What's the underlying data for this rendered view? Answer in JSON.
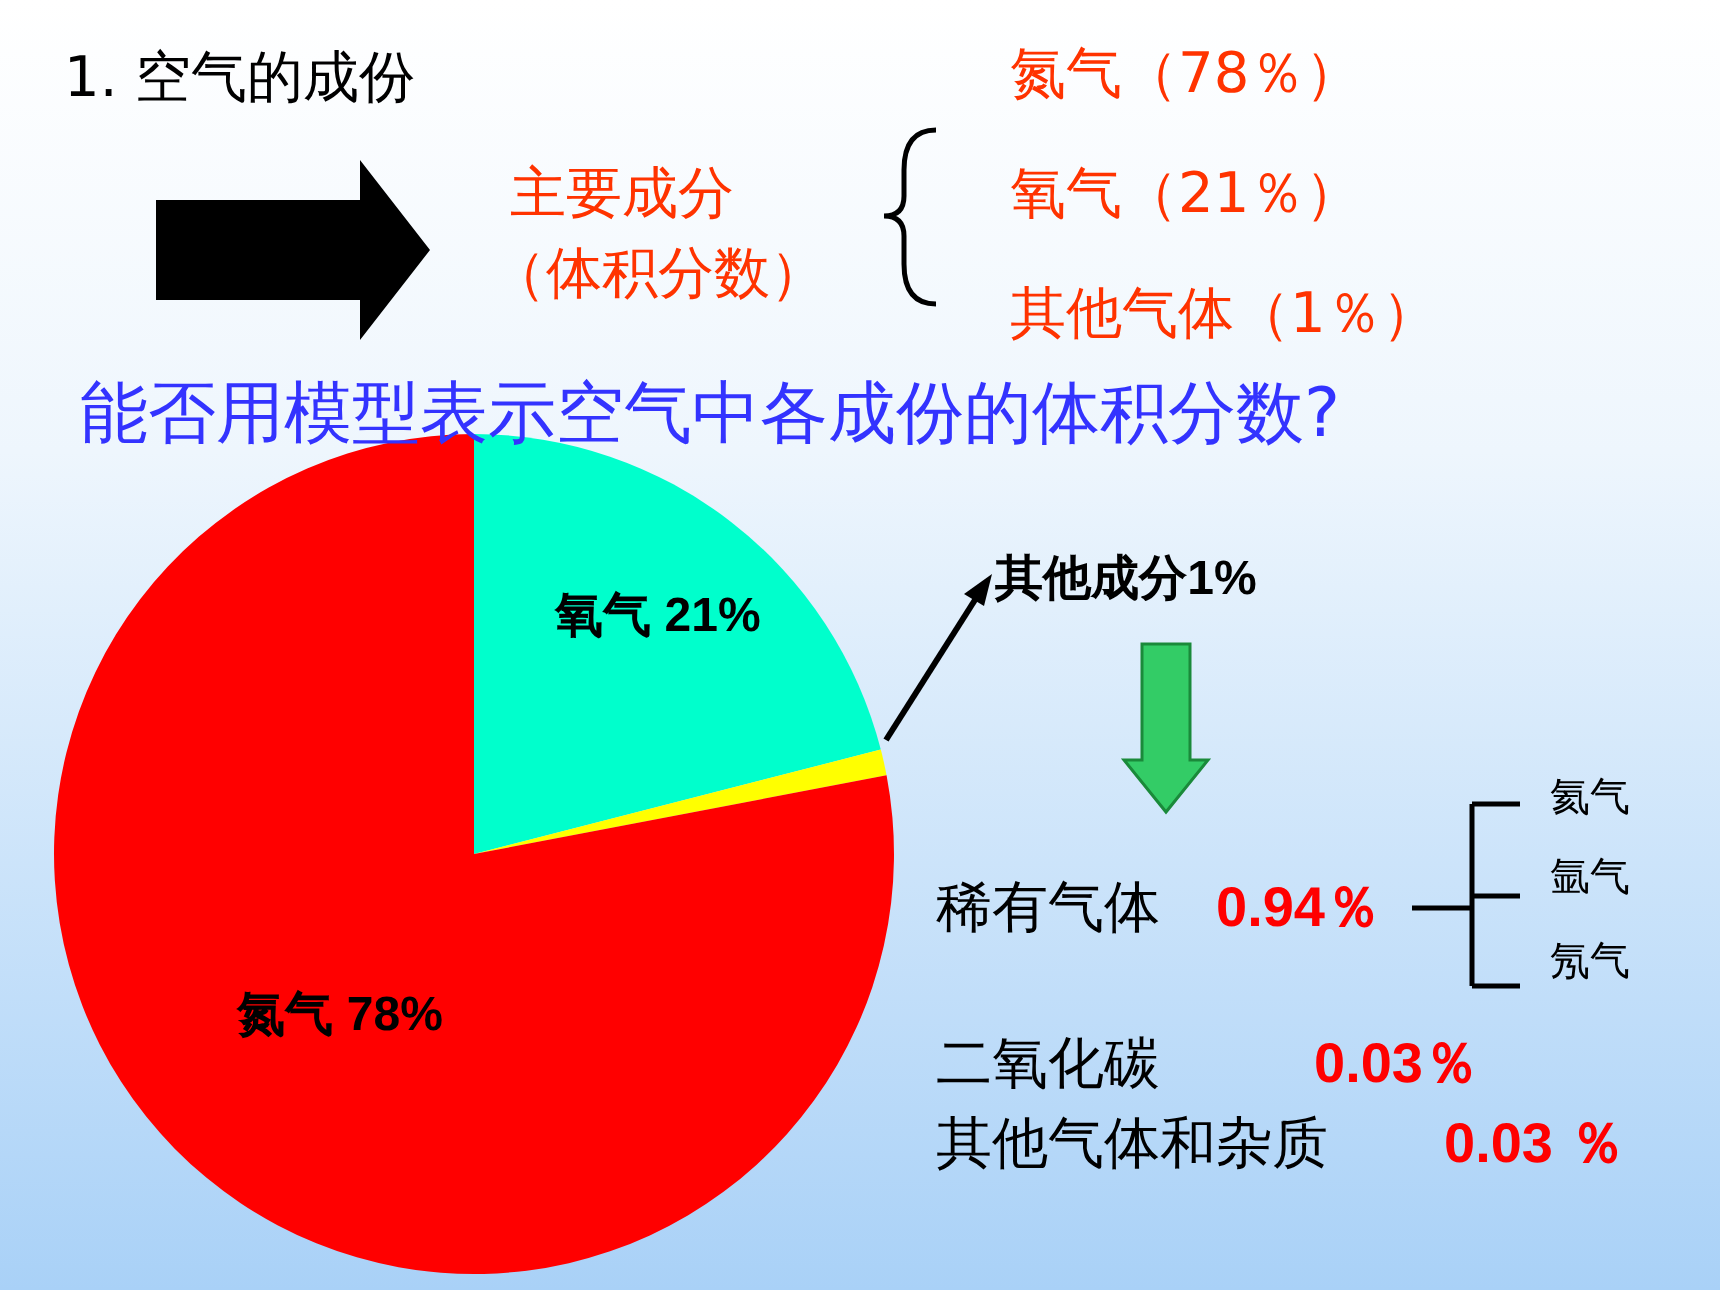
{
  "chart_data": {
    "type": "pie",
    "title": "能否用模型表示空气中各成份的体积分数?",
    "categories": [
      "氧气",
      "其他成分",
      "氮气"
    ],
    "values": [
      21,
      1,
      78
    ],
    "colors": [
      "#00ffcc",
      "#ffff00",
      "#ff0000"
    ],
    "value_labels": [
      "21%",
      "1%",
      "78%"
    ],
    "annotations": [
      "1. 空气的成份",
      "主要成分",
      "（体积分数）",
      "氮气（78％）",
      "氧气（21％）",
      "其他气体（1％）",
      "稀有气体",
      "0.94％",
      "氦气",
      "氩气",
      "氖气",
      "二氧化碳",
      "0.03％",
      "其他气体和杂质",
      "0.03 ％"
    ]
  }
}
